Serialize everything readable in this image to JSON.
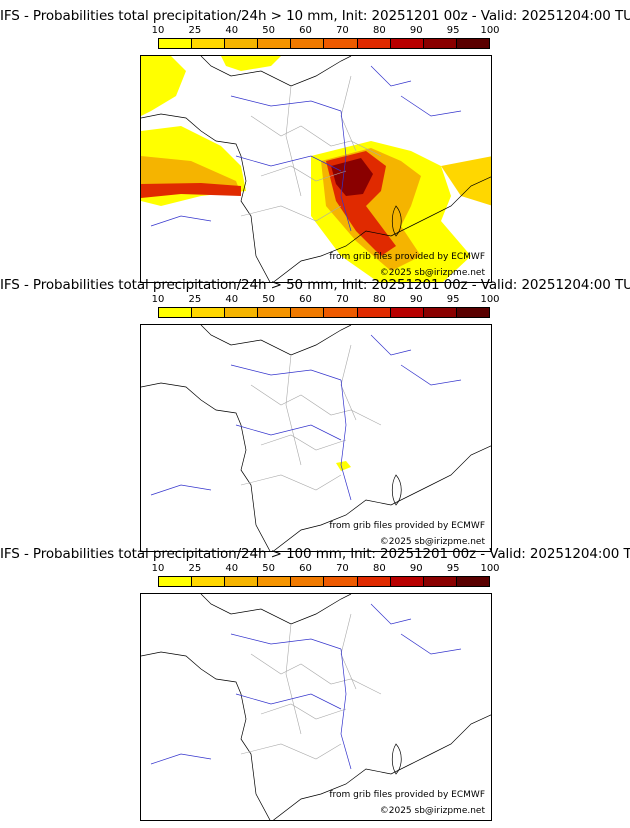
{
  "panels": [
    {
      "title": "IFS - Probabilities total precipitation/24h > 10 mm, Init: 20251201 00z - Valid: 20251204:00 TU",
      "threshold_mm": 10
    },
    {
      "title": "IFS - Probabilities total precipitation/24h > 50 mm, Init: 20251201 00z - Valid: 20251204:00 TU",
      "threshold_mm": 50
    },
    {
      "title": "IFS - Probabilities total precipitation/24h > 100 mm, Init: 20251201 00z - Valid: 20251204:00 TU",
      "threshold_mm": 100
    }
  ],
  "colorbar": {
    "ticks": [
      "10",
      "25",
      "40",
      "50",
      "60",
      "70",
      "80",
      "90",
      "95",
      "100"
    ],
    "colors": [
      "#ffff00",
      "#ffd700",
      "#f5b400",
      "#f59400",
      "#f07a00",
      "#ee5a00",
      "#e02a00",
      "#b80000",
      "#8a0000",
      "#5a0000"
    ]
  },
  "credits": {
    "source": "from grib files provided by ECMWF",
    "copyright": "©2025 sb@irizpme.net"
  },
  "colors": {
    "rivers": "#3333cc",
    "borders": "#aaaaaa",
    "coast": "#000000"
  }
}
